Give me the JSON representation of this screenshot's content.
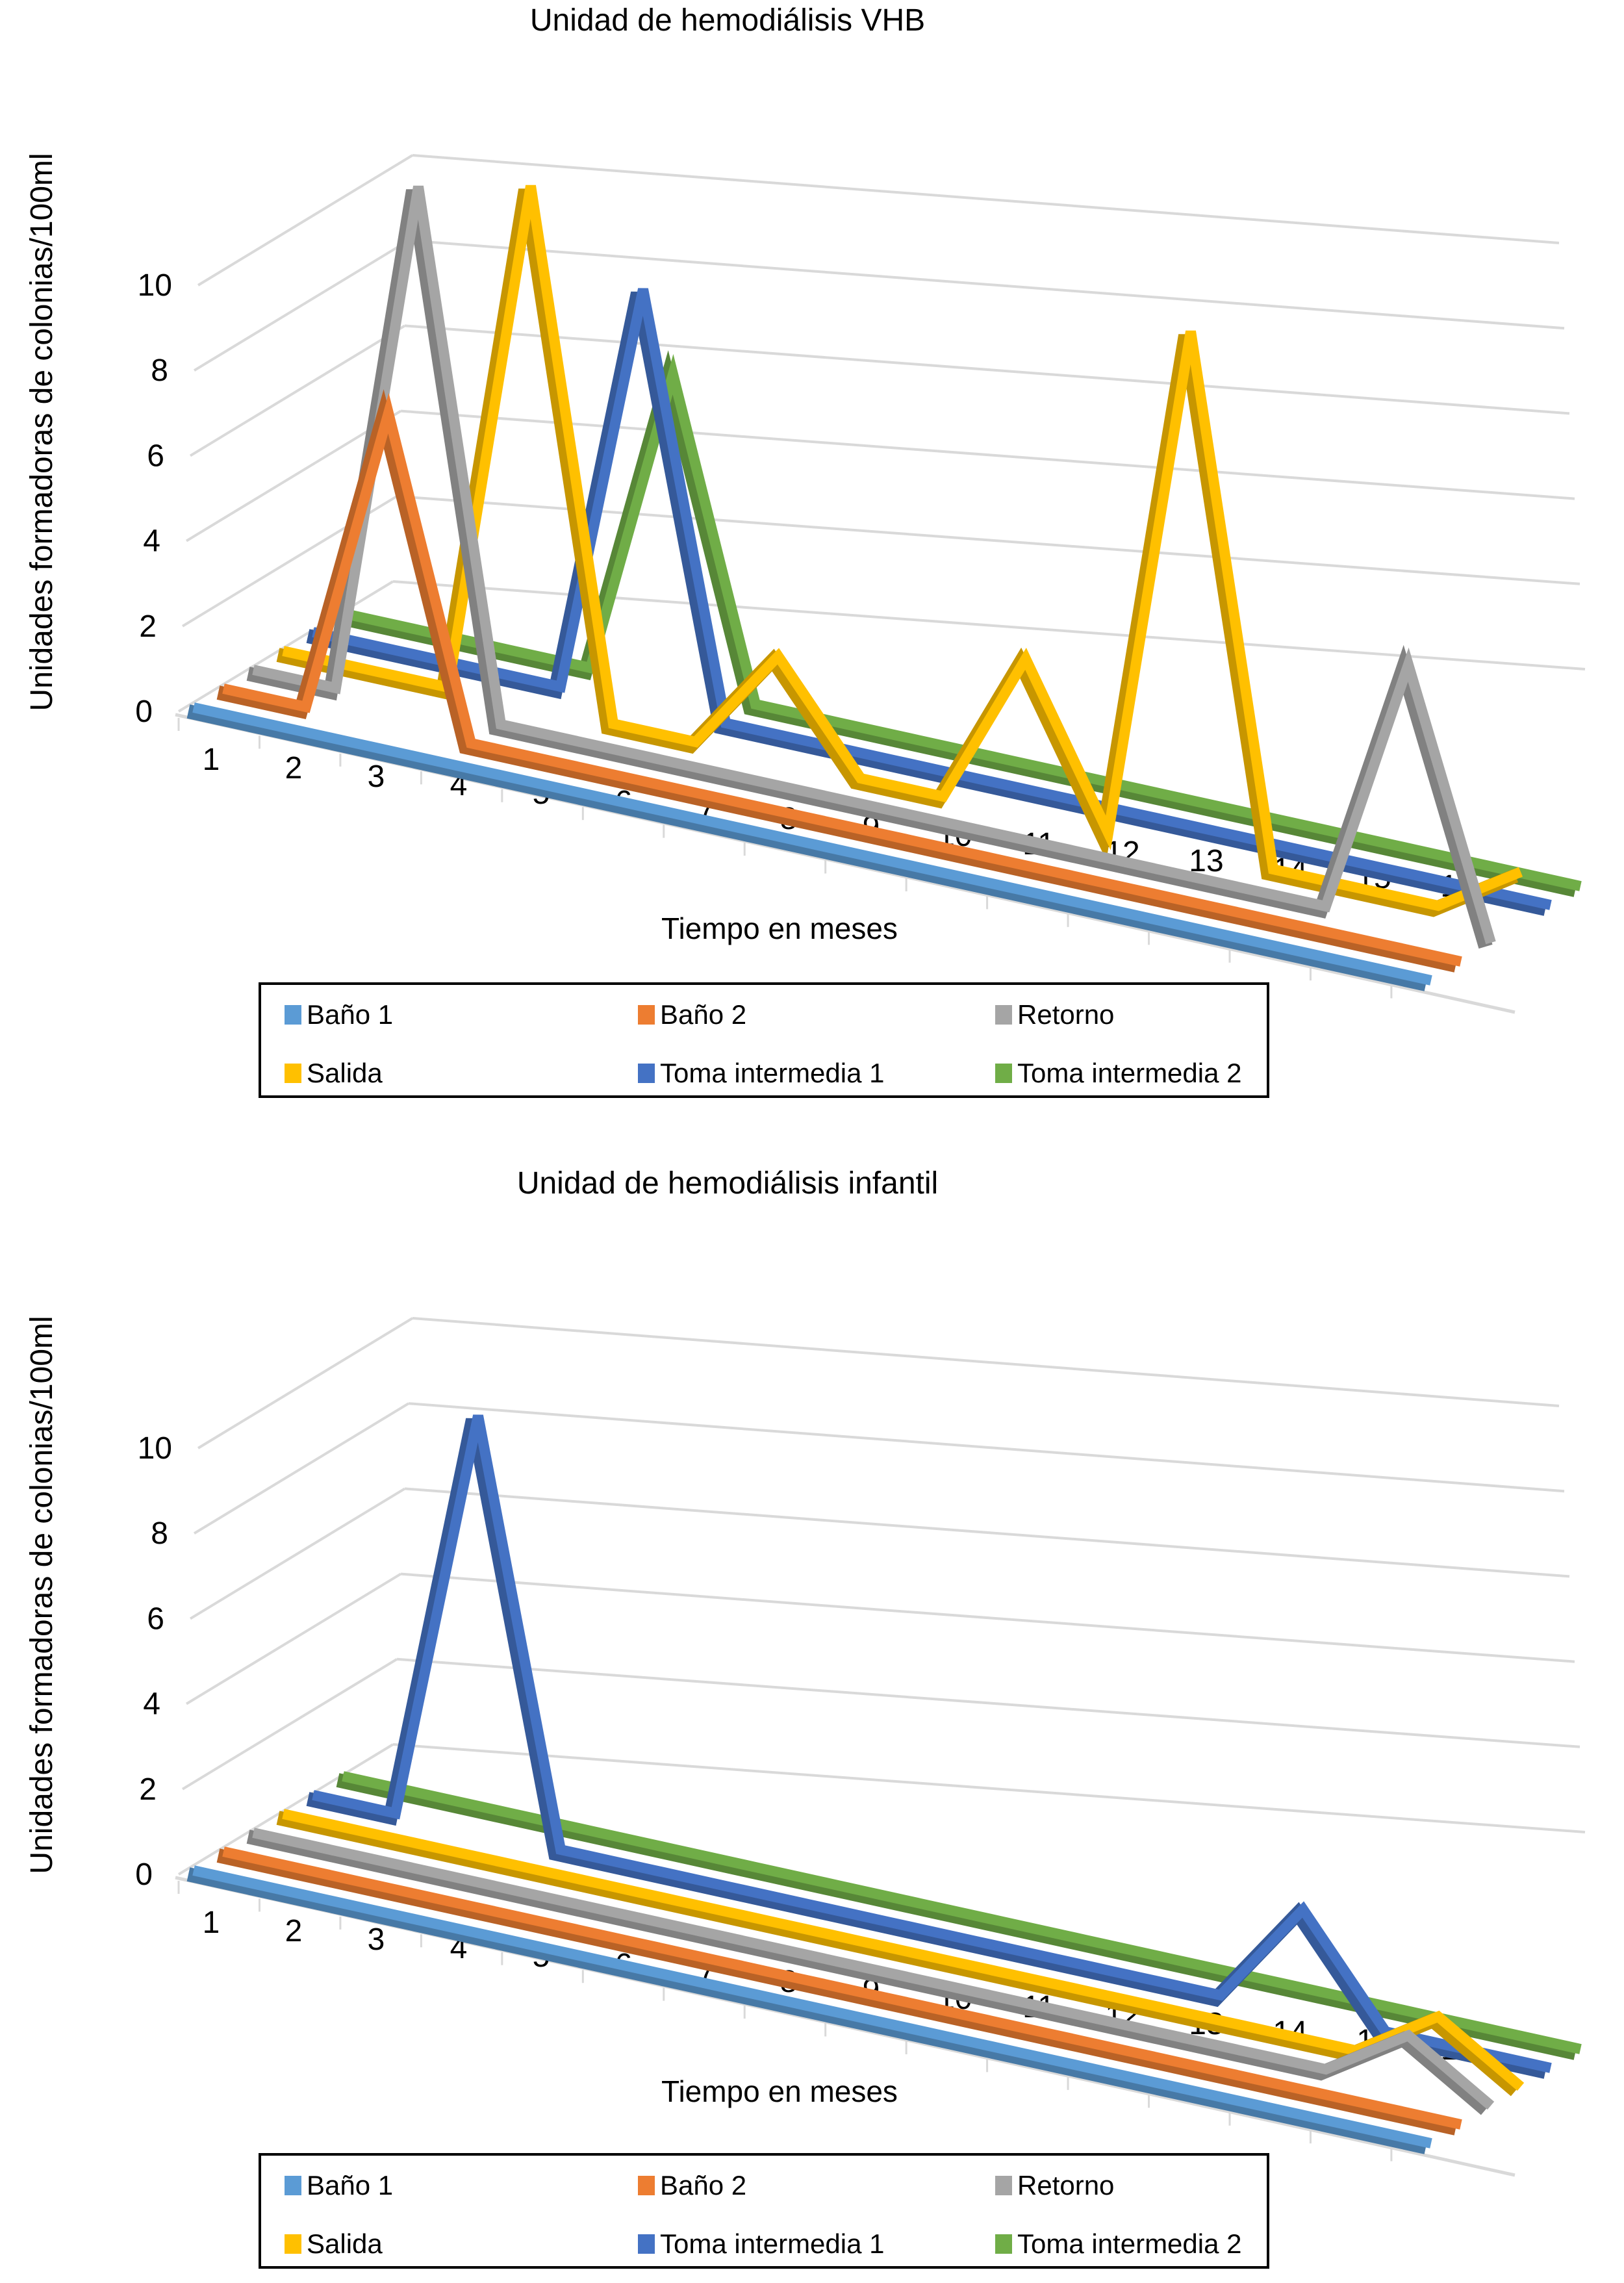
{
  "chart_data": [
    {
      "type": "line",
      "subtype": "3d-line",
      "title": "Unidad de hemodiálisis VHB",
      "xlabel": "Tiempo en meses",
      "ylabel": "Unidades formadoras de colonias/100ml",
      "x": [
        "1",
        "2",
        "3",
        "4",
        "5",
        "6",
        "7",
        "8",
        "9",
        "10",
        "11",
        "12",
        "13",
        "14",
        "15",
        "16"
      ],
      "yticks": [
        "0",
        "2",
        "4",
        "6",
        "8",
        "10"
      ],
      "ylim": [
        0,
        10
      ],
      "grid": true,
      "legend_position": "bottom",
      "series": [
        {
          "name": "Baño 1",
          "color": "#5b9bd5",
          "values": [
            0,
            0,
            0,
            0,
            0,
            0,
            0,
            0,
            0,
            0,
            0,
            0,
            0,
            0,
            0,
            0
          ]
        },
        {
          "name": "Baño 2",
          "color": "#ed7d31",
          "values": [
            0,
            0,
            6,
            0,
            0,
            0,
            0,
            0,
            0,
            0,
            0,
            0,
            0,
            0,
            0,
            0
          ]
        },
        {
          "name": "Retorno",
          "color": "#a5a5a5",
          "values": [
            0,
            0,
            10,
            0,
            0,
            0,
            0,
            0,
            0,
            0,
            0,
            0,
            0,
            0,
            5,
            0
          ]
        },
        {
          "name": "Salida",
          "color": "#ffc000",
          "values": [
            0,
            0,
            0,
            10,
            0,
            0,
            2,
            0,
            0,
            3,
            0,
            10,
            0,
            0,
            0,
            1
          ]
        },
        {
          "name": "Toma intermedia 1",
          "color": "#4472c4",
          "values": [
            0,
            0,
            0,
            0,
            8,
            0,
            0,
            0,
            0,
            0,
            0,
            0,
            0,
            0,
            0,
            0
          ]
        },
        {
          "name": "Toma intermedia 2",
          "color": "#70ad47",
          "values": [
            0,
            0,
            0,
            0,
            6,
            0,
            0,
            0,
            0,
            0,
            0,
            0,
            0,
            0,
            0,
            0
          ]
        }
      ]
    },
    {
      "type": "line",
      "subtype": "3d-line",
      "title": "Unidad de hemodiálisis infantil",
      "xlabel": "Tiempo en meses",
      "ylabel": "Unidades formadoras de colonias/100ml",
      "x": [
        "1",
        "2",
        "3",
        "4",
        "5",
        "6",
        "7",
        "8",
        "9",
        "10",
        "11",
        "12",
        "13",
        "14",
        "15",
        "16"
      ],
      "yticks": [
        "0",
        "2",
        "4",
        "6",
        "8",
        "10"
      ],
      "ylim": [
        0,
        10
      ],
      "grid": true,
      "legend_position": "bottom",
      "series": [
        {
          "name": "Baño 1",
          "color": "#5b9bd5",
          "values": [
            0,
            0,
            0,
            0,
            0,
            0,
            0,
            0,
            0,
            0,
            0,
            0,
            0,
            0,
            0,
            0
          ]
        },
        {
          "name": "Baño 2",
          "color": "#ed7d31",
          "values": [
            0,
            0,
            0,
            0,
            0,
            0,
            0,
            0,
            0,
            0,
            0,
            0,
            0,
            0,
            0,
            0
          ]
        },
        {
          "name": "Retorno",
          "color": "#a5a5a5",
          "values": [
            0,
            0,
            0,
            0,
            0,
            0,
            0,
            0,
            0,
            0,
            0,
            0,
            0,
            0,
            1,
            0
          ]
        },
        {
          "name": "Salida",
          "color": "#ffc000",
          "values": [
            0,
            0,
            0,
            0,
            0,
            0,
            0,
            0,
            0,
            0,
            0,
            0,
            0,
            0,
            1,
            0
          ]
        },
        {
          "name": "Toma intermedia 1",
          "color": "#4472c4",
          "values": [
            0,
            0,
            8,
            0,
            0,
            0,
            0,
            0,
            0,
            0,
            0,
            0,
            2,
            0,
            0,
            0
          ]
        },
        {
          "name": "Toma intermedia 2",
          "color": "#70ad47",
          "values": [
            0,
            0,
            0,
            0,
            0,
            0,
            0,
            0,
            0,
            0,
            0,
            0,
            0,
            0,
            0,
            0
          ]
        }
      ]
    }
  ]
}
